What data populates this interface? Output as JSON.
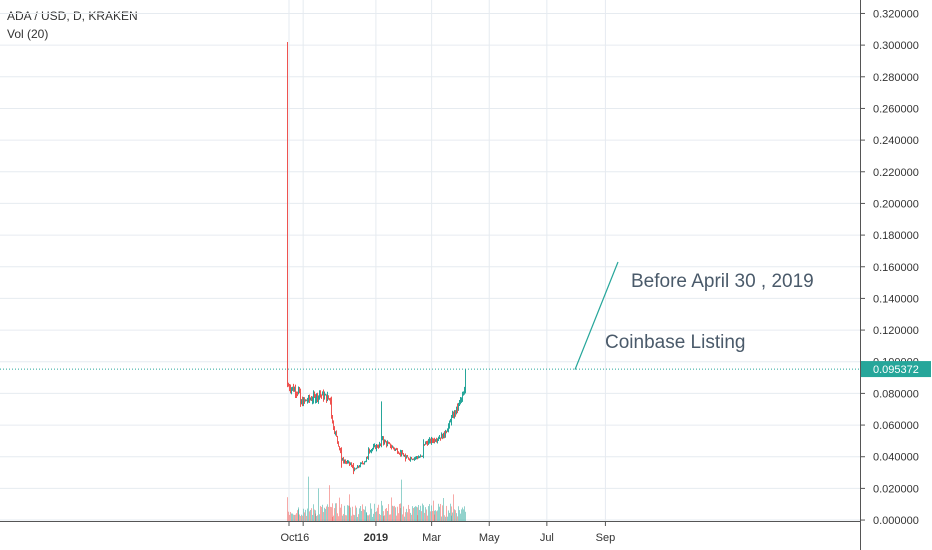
{
  "header": {
    "title": "ADA / USD, D, KRAKEN",
    "volume_indicator": "Vol (20)"
  },
  "colors": {
    "up": "#26a69a",
    "down": "#ef5350",
    "grid": "#e6ebf0",
    "axis_text": "#333333",
    "last_price_bg": "#26a69a",
    "annotation_line": "#26a69a",
    "annotation_text": "#4a5a6a"
  },
  "chart_data": {
    "type": "candlestick",
    "symbol": "ADA / USD",
    "exchange": "KRAKEN",
    "interval": "D",
    "y_axis": {
      "ticks": [
        "0.320000",
        "0.300000",
        "0.280000",
        "0.260000",
        "0.240000",
        "0.220000",
        "0.200000",
        "0.180000",
        "0.160000",
        "0.140000",
        "0.120000",
        "0.100000",
        "0.080000",
        "0.060000",
        "0.040000",
        "0.020000",
        "0.000000"
      ],
      "ylim": [
        -0.0006,
        0.3285
      ]
    },
    "x_axis": {
      "tick_labels": [
        {
          "label": "Oct",
          "date": "2018-10-01"
        },
        {
          "label": "16",
          "date": "2018-10-16"
        },
        {
          "label": "2019",
          "date": "2019-01-01",
          "bold": true
        },
        {
          "label": "Mar",
          "date": "2019-03-01"
        },
        {
          "label": "May",
          "date": "2019-05-01"
        },
        {
          "label": "Jul",
          "date": "2019-07-01"
        },
        {
          "label": "Sep",
          "date": "2019-09-01"
        }
      ]
    },
    "last_price": "0.095372",
    "price_series": [
      {
        "d": "2018-09-29",
        "o": 0.0951,
        "h": 0.302,
        "l": 0.084,
        "c": 0.085
      },
      {
        "d": "2018-10-13",
        "o": 0.08,
        "h": 0.083,
        "l": 0.0715,
        "c": 0.074
      },
      {
        "d": "2018-11-02",
        "o": 0.079,
        "h": 0.082,
        "l": 0.076,
        "c": 0.0795
      },
      {
        "d": "2018-11-14",
        "o": 0.076,
        "h": 0.078,
        "l": 0.064,
        "c": 0.066
      },
      {
        "d": "2018-11-25",
        "o": 0.041,
        "h": 0.046,
        "l": 0.033,
        "c": 0.038
      },
      {
        "d": "2018-12-08",
        "o": 0.034,
        "h": 0.036,
        "l": 0.029,
        "c": 0.031
      },
      {
        "d": "2018-12-24",
        "o": 0.04,
        "h": 0.046,
        "l": 0.038,
        "c": 0.044
      },
      {
        "d": "2019-01-06",
        "o": 0.048,
        "h": 0.075,
        "l": 0.046,
        "c": 0.051
      },
      {
        "d": "2019-02-01",
        "o": 0.04,
        "h": 0.042,
        "l": 0.037,
        "c": 0.039
      },
      {
        "d": "2019-02-20",
        "o": 0.04,
        "h": 0.051,
        "l": 0.039,
        "c": 0.048
      },
      {
        "d": "2019-03-15",
        "o": 0.054,
        "h": 0.057,
        "l": 0.052,
        "c": 0.056
      },
      {
        "d": "2019-03-29",
        "o": 0.072,
        "h": 0.074,
        "l": 0.069,
        "c": 0.073
      },
      {
        "d": "2019-04-05",
        "o": 0.081,
        "h": 0.095,
        "l": 0.08,
        "c": 0.095
      }
    ],
    "annotations": [
      {
        "text": "Before April 30 , 2019"
      },
      {
        "text": "Coinbase Listing"
      }
    ]
  }
}
